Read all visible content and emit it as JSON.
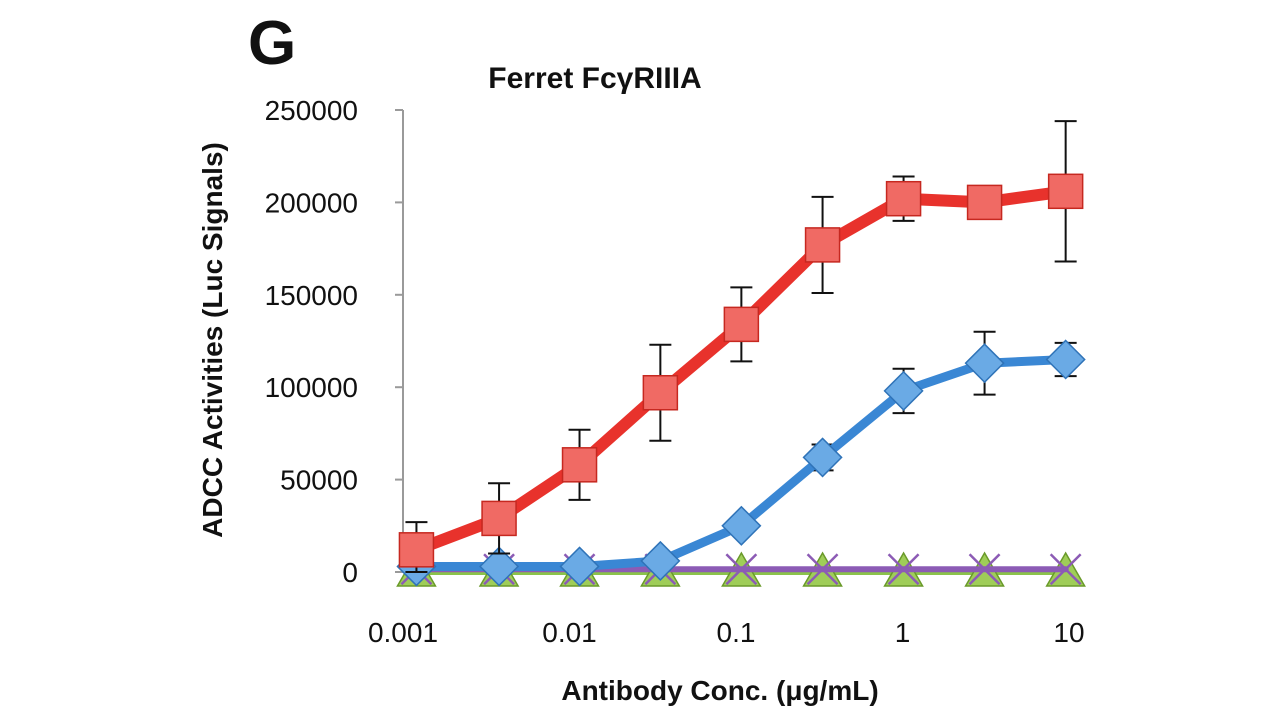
{
  "panel_label": "G",
  "chart_data": {
    "type": "line",
    "title": "Ferret FcγRIIIA",
    "xlabel": "Antibody Conc. (μg/mL)",
    "ylabel": "ADCC Activities (Luc Signals)",
    "xscale": "log",
    "xlim": [
      0.00125,
      13
    ],
    "ylim": [
      0,
      250000
    ],
    "x_ticks": [
      0.001,
      0.01,
      0.1,
      1,
      10
    ],
    "x_tick_labels": [
      "0.001",
      "0.01",
      "0.1",
      "1",
      "10"
    ],
    "y_ticks": [
      0,
      50000,
      100000,
      150000,
      200000,
      250000
    ],
    "y_tick_labels": [
      "0",
      "50000",
      "100000",
      "150000",
      "200000",
      "250000"
    ],
    "x": [
      0.0015,
      0.0046,
      0.0137,
      0.041,
      0.123,
      0.37,
      1.11,
      3.33,
      10
    ],
    "series": [
      {
        "name": "red-squares",
        "color": "#e8322c",
        "marker": "square",
        "values": [
          12000,
          29000,
          58000,
          97000,
          134000,
          177000,
          202000,
          200000,
          206000
        ],
        "errors": [
          15000,
          19000,
          19000,
          26000,
          20000,
          26000,
          12000,
          0,
          38000
        ]
      },
      {
        "name": "blue-diamonds",
        "color": "#3a87d4",
        "marker": "diamond",
        "values": [
          3000,
          3000,
          3000,
          6000,
          25000,
          62000,
          98000,
          113000,
          115000
        ],
        "errors": [
          0,
          0,
          0,
          0,
          4000,
          7000,
          12000,
          17000,
          9000
        ]
      },
      {
        "name": "green-triangles",
        "color": "#8bc34a",
        "marker": "triangle",
        "values": [
          0,
          0,
          0,
          0,
          0,
          0,
          0,
          0,
          0
        ],
        "errors": [
          0,
          0,
          0,
          0,
          0,
          0,
          0,
          0,
          0
        ]
      },
      {
        "name": "purple-crosses",
        "color": "#8c5bb5",
        "marker": "x",
        "values": [
          1500,
          1500,
          1500,
          1500,
          1500,
          1500,
          1500,
          1500,
          1500
        ],
        "errors": [
          0,
          0,
          0,
          0,
          0,
          0,
          0,
          0,
          0
        ]
      }
    ]
  }
}
